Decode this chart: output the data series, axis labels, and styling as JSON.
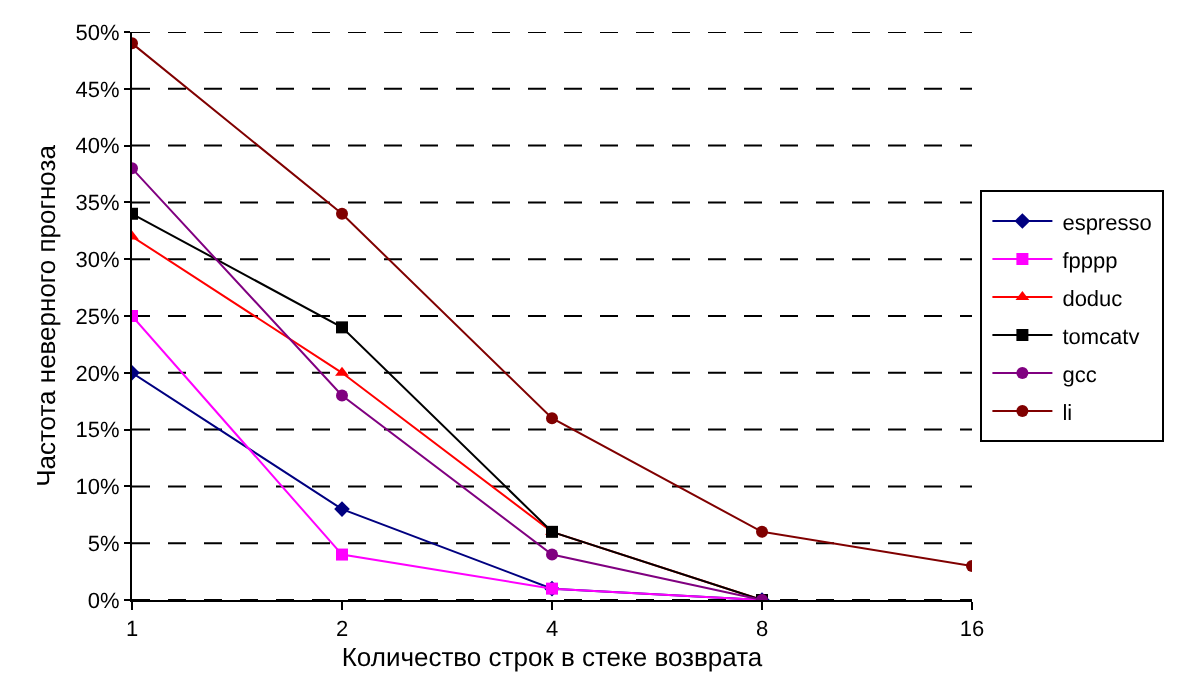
{
  "chart_data": {
    "type": "line",
    "xlabel": "Количество строк в стеке возврата",
    "ylabel": "Частота неверного прогноза",
    "categories": [
      "1",
      "2",
      "4",
      "8",
      "16"
    ],
    "series": [
      {
        "name": "espresso",
        "color": "#000080",
        "marker": "diamond",
        "values": [
          20,
          8,
          1,
          0,
          null
        ]
      },
      {
        "name": "fpppp",
        "color": "#ff00ff",
        "marker": "square",
        "values": [
          25,
          4,
          1,
          0,
          null
        ]
      },
      {
        "name": "doduc",
        "color": "#ff0000",
        "marker": "triangle",
        "values": [
          32,
          20,
          6,
          0,
          null
        ]
      },
      {
        "name": "tomcatv",
        "color": "#000000",
        "marker": "square",
        "values": [
          34,
          24,
          6,
          0,
          null
        ]
      },
      {
        "name": "gcc",
        "color": "#800080",
        "marker": "circle",
        "values": [
          38,
          18,
          4,
          0,
          null
        ]
      },
      {
        "name": "li",
        "color": "#800000",
        "marker": "circle",
        "values": [
          49,
          34,
          16,
          6,
          3
        ]
      }
    ],
    "ylim": [
      0,
      50
    ],
    "yticks": [
      {
        "value": 0,
        "label": "0%"
      },
      {
        "value": 5,
        "label": "5%"
      },
      {
        "value": 10,
        "label": "10%"
      },
      {
        "value": 15,
        "label": "15%"
      },
      {
        "value": 20,
        "label": "20%"
      },
      {
        "value": 25,
        "label": "25%"
      },
      {
        "value": 30,
        "label": "30%"
      },
      {
        "value": 35,
        "label": "35%"
      },
      {
        "value": 40,
        "label": "40%"
      },
      {
        "value": 45,
        "label": "45%"
      },
      {
        "value": 50,
        "label": "50%"
      }
    ],
    "grid": "y",
    "legend": "right",
    "line_style": "solid"
  }
}
